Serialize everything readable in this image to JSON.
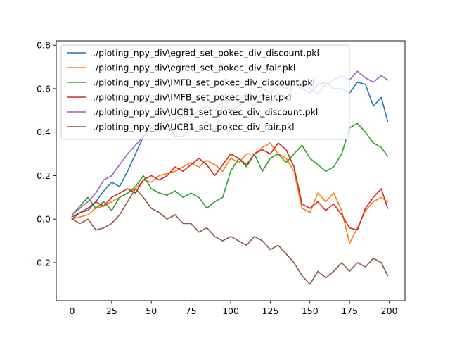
{
  "chart_data": {
    "type": "line",
    "title": "",
    "xlabel": "",
    "ylabel": "",
    "xlim": [
      -9.95,
      209.95
    ],
    "ylim": [
      -0.375,
      0.82
    ],
    "xticks": [
      0,
      25,
      50,
      75,
      100,
      125,
      150,
      175,
      200
    ],
    "xtick_labels": [
      "0",
      "25",
      "50",
      "75",
      "100",
      "125",
      "150",
      "175",
      "200"
    ],
    "yticks": [
      -0.2,
      0.0,
      0.2,
      0.4,
      0.6,
      0.8
    ],
    "ytick_labels": [
      "−0.2",
      "0.0",
      "0.2",
      "0.4",
      "0.6",
      "0.8"
    ],
    "grid": false,
    "legend_position": "upper-left",
    "series": [
      {
        "name": "./ploting_npy_div\\egred_set_pokec_div_discount.pkl",
        "color": "#1f77b4",
        "x": [
          0,
          5,
          10,
          15,
          20,
          25,
          30,
          35,
          40,
          45,
          50,
          55,
          60,
          65,
          70,
          75,
          80,
          85,
          90,
          95,
          100,
          105,
          110,
          115,
          120,
          125,
          130,
          135,
          140,
          145,
          150,
          155,
          160,
          165,
          170,
          175,
          180,
          185,
          190,
          195,
          199
        ],
        "y": [
          0.01,
          0.03,
          0.04,
          0.08,
          0.13,
          0.17,
          0.15,
          0.22,
          0.3,
          0.38,
          0.42,
          0.4,
          0.44,
          0.38,
          0.38,
          0.42,
          0.4,
          0.45,
          0.4,
          0.52,
          0.5,
          0.52,
          0.55,
          0.52,
          0.58,
          0.53,
          0.58,
          0.55,
          0.62,
          0.6,
          0.58,
          0.62,
          0.63,
          0.6,
          0.6,
          0.58,
          0.63,
          0.62,
          0.52,
          0.56,
          0.45
        ]
      },
      {
        "name": "./ploting_npy_div\\egred_set_pokec_div_fair.pkl",
        "color": "#ff7f0e",
        "x": [
          0,
          5,
          10,
          15,
          20,
          25,
          30,
          35,
          40,
          45,
          50,
          55,
          60,
          65,
          70,
          75,
          80,
          85,
          90,
          95,
          100,
          105,
          110,
          115,
          120,
          125,
          130,
          135,
          140,
          145,
          150,
          155,
          160,
          165,
          170,
          175,
          180,
          185,
          190,
          195,
          199
        ],
        "y": [
          0.0,
          0.01,
          0.02,
          0.05,
          0.06,
          0.08,
          0.1,
          0.12,
          0.14,
          0.18,
          0.17,
          0.2,
          0.21,
          0.22,
          0.24,
          0.26,
          0.24,
          0.27,
          0.25,
          0.22,
          0.28,
          0.26,
          0.3,
          0.3,
          0.33,
          0.35,
          0.3,
          0.28,
          0.22,
          0.05,
          0.03,
          0.12,
          0.08,
          0.12,
          0.04,
          -0.11,
          -0.04,
          0.04,
          0.08,
          0.1,
          0.08
        ]
      },
      {
        "name": "./ploting_npy_div\\IMFB_set_pokec_div_discount.pkl",
        "color": "#2ca02c",
        "x": [
          0,
          5,
          10,
          15,
          20,
          25,
          30,
          35,
          40,
          45,
          50,
          55,
          60,
          65,
          70,
          75,
          80,
          85,
          90,
          95,
          100,
          105,
          110,
          115,
          120,
          125,
          130,
          135,
          140,
          145,
          150,
          155,
          160,
          165,
          170,
          175,
          180,
          185,
          190,
          195,
          199
        ],
        "y": [
          0.02,
          0.06,
          0.1,
          0.05,
          0.08,
          0.04,
          0.1,
          0.12,
          0.15,
          0.2,
          0.14,
          0.12,
          0.11,
          0.13,
          0.1,
          0.12,
          0.1,
          0.05,
          0.08,
          0.1,
          0.22,
          0.28,
          0.24,
          0.3,
          0.22,
          0.28,
          0.3,
          0.26,
          0.3,
          0.34,
          0.28,
          0.25,
          0.22,
          0.24,
          0.3,
          0.42,
          0.44,
          0.4,
          0.35,
          0.33,
          0.29
        ]
      },
      {
        "name": "./ploting_npy_div\\IMFB_set_pokec_div_fair.pkl",
        "color": "#d62728",
        "x": [
          0,
          5,
          10,
          15,
          20,
          25,
          30,
          35,
          40,
          45,
          50,
          55,
          60,
          65,
          70,
          75,
          80,
          85,
          90,
          95,
          100,
          105,
          110,
          115,
          120,
          125,
          130,
          135,
          140,
          145,
          150,
          155,
          160,
          165,
          170,
          175,
          180,
          185,
          190,
          195,
          199
        ],
        "y": [
          0.0,
          0.03,
          0.05,
          0.08,
          0.06,
          0.1,
          0.12,
          0.14,
          0.12,
          0.18,
          0.2,
          0.18,
          0.2,
          0.24,
          0.22,
          0.25,
          0.28,
          0.25,
          0.2,
          0.25,
          0.3,
          0.28,
          0.25,
          0.3,
          0.32,
          0.3,
          0.35,
          0.32,
          0.24,
          0.07,
          0.05,
          0.08,
          0.04,
          0.07,
          0.02,
          -0.04,
          -0.05,
          0.05,
          0.1,
          0.14,
          0.05
        ]
      },
      {
        "name": "./ploting_npy_div\\UCB1_set_pokec_div_discount.pkl",
        "color": "#9467bd",
        "x": [
          0,
          5,
          10,
          15,
          20,
          25,
          30,
          35,
          40,
          45,
          50,
          55,
          60,
          65,
          70,
          75,
          80,
          85,
          90,
          95,
          100,
          105,
          110,
          115,
          120,
          125,
          130,
          135,
          140,
          145,
          150,
          155,
          160,
          165,
          170,
          175,
          180,
          185,
          190,
          195,
          199
        ],
        "y": [
          0.02,
          0.05,
          0.08,
          0.12,
          0.18,
          0.2,
          0.25,
          0.3,
          0.34,
          0.38,
          0.42,
          0.44,
          0.45,
          0.46,
          0.48,
          0.47,
          0.5,
          0.52,
          0.5,
          0.54,
          0.55,
          0.54,
          0.58,
          0.56,
          0.6,
          0.58,
          0.62,
          0.6,
          0.62,
          0.62,
          0.6,
          0.58,
          0.62,
          0.64,
          0.66,
          0.64,
          0.68,
          0.65,
          0.63,
          0.66,
          0.64
        ]
      },
      {
        "name": "./ploting_npy_div\\UCB1_set_pokec_div_fair.pkl",
        "color": "#8c564b",
        "x": [
          0,
          5,
          10,
          15,
          20,
          25,
          30,
          35,
          40,
          45,
          50,
          55,
          60,
          65,
          70,
          75,
          80,
          85,
          90,
          95,
          100,
          105,
          110,
          115,
          120,
          125,
          130,
          135,
          140,
          145,
          150,
          155,
          160,
          165,
          170,
          175,
          180,
          185,
          190,
          195,
          199
        ],
        "y": [
          0.0,
          -0.02,
          0.0,
          -0.05,
          -0.04,
          -0.02,
          0.02,
          0.08,
          0.14,
          0.1,
          0.05,
          0.03,
          0.0,
          0.02,
          -0.02,
          -0.02,
          -0.06,
          -0.04,
          -0.08,
          -0.1,
          -0.08,
          -0.1,
          -0.12,
          -0.08,
          -0.1,
          -0.14,
          -0.12,
          -0.16,
          -0.2,
          -0.26,
          -0.3,
          -0.24,
          -0.27,
          -0.24,
          -0.2,
          -0.24,
          -0.2,
          -0.22,
          -0.18,
          -0.2,
          -0.26
        ]
      }
    ]
  }
}
